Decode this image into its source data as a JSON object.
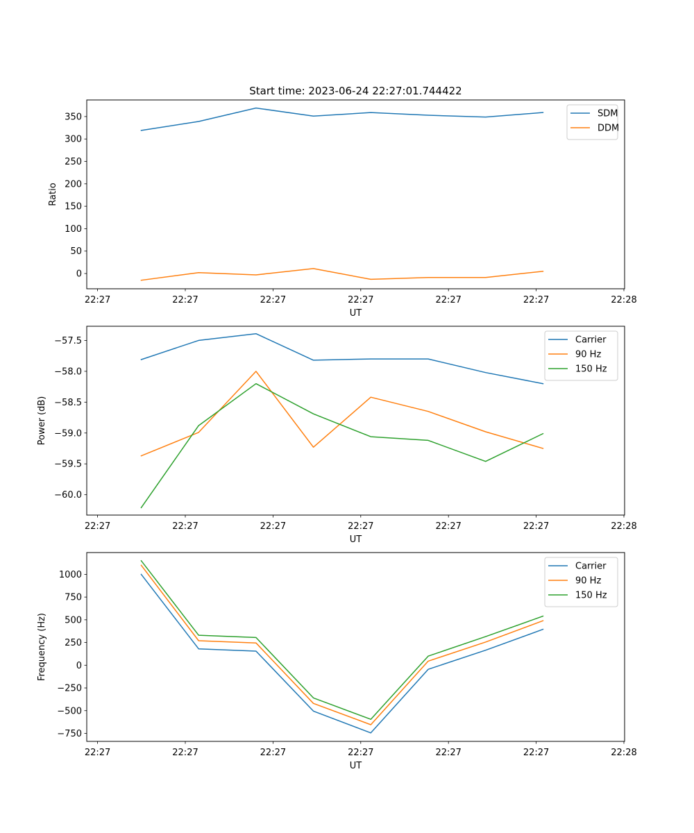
{
  "figure": {
    "title": "Start time: 2023-06-24 22:27:01.744422"
  },
  "chart_data": [
    {
      "type": "line",
      "xlabel": "UT",
      "ylabel": "Ratio",
      "x_tick_labels": [
        "22:27",
        "22:27",
        "22:27",
        "22:27",
        "22:27",
        "22:27",
        "22:28"
      ],
      "yticks": [
        0,
        50,
        100,
        150,
        200,
        250,
        300,
        350
      ],
      "ylim": [
        -34,
        387
      ],
      "legend_position": "upper right",
      "series": [
        {
          "name": "SDM",
          "color": "#1f77b4",
          "values": [
            319,
            339,
            369,
            351,
            359,
            353,
            349,
            359
          ]
        },
        {
          "name": "DDM",
          "color": "#ff7f0e",
          "values": [
            -15,
            2,
            -3,
            11,
            -13,
            -9,
            -9,
            5
          ]
        }
      ]
    },
    {
      "type": "line",
      "xlabel": "UT",
      "ylabel": "Power (dB)",
      "x_tick_labels": [
        "22:27",
        "22:27",
        "22:27",
        "22:27",
        "22:27",
        "22:27",
        "22:28"
      ],
      "yticks": [
        -60.0,
        -59.5,
        -59.0,
        -58.5,
        -58.0,
        -57.5
      ],
      "ylim": [
        -60.33,
        -57.27
      ],
      "legend_position": "upper right",
      "series": [
        {
          "name": "Carrier",
          "color": "#1f77b4",
          "values": [
            -57.81,
            -57.5,
            -57.39,
            -57.82,
            -57.8,
            -57.8,
            -58.02,
            -58.2
          ]
        },
        {
          "name": "90 Hz",
          "color": "#ff7f0e",
          "values": [
            -59.37,
            -58.99,
            -58.0,
            -59.23,
            -58.42,
            -58.65,
            -58.98,
            -59.25
          ]
        },
        {
          "name": "150 Hz",
          "color": "#2ca02c",
          "values": [
            -60.21,
            -58.88,
            -58.2,
            -58.69,
            -59.06,
            -59.12,
            -59.46,
            -59.01
          ]
        }
      ]
    },
    {
      "type": "line",
      "xlabel": "UT",
      "ylabel": "Frequency (Hz)",
      "x_tick_labels": [
        "22:27",
        "22:27",
        "22:27",
        "22:27",
        "22:27",
        "22:27",
        "22:28"
      ],
      "yticks": [
        -750,
        -500,
        -250,
        0,
        250,
        500,
        750,
        1000
      ],
      "ylim": [
        -838,
        1240
      ],
      "legend_position": "upper right",
      "series": [
        {
          "name": "Carrier",
          "color": "#1f77b4",
          "values": [
            1000,
            180,
            155,
            -505,
            -745,
            -45,
            165,
            395
          ]
        },
        {
          "name": "90 Hz",
          "color": "#ff7f0e",
          "values": [
            1100,
            270,
            245,
            -420,
            -655,
            45,
            255,
            490
          ]
        },
        {
          "name": "150 Hz",
          "color": "#2ca02c",
          "values": [
            1150,
            330,
            305,
            -360,
            -595,
            100,
            315,
            540
          ]
        }
      ]
    }
  ]
}
